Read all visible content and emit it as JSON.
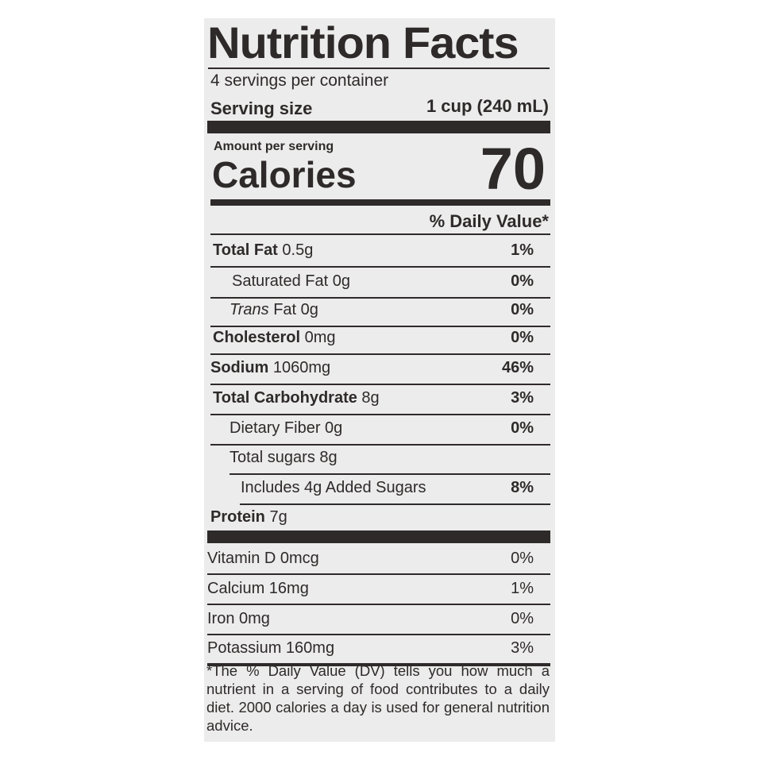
{
  "title": "Nutrition Facts",
  "servings": "4 servings per container",
  "serving_size_label": "Serving size",
  "serving_size_value": "1 cup (240 mL)",
  "amount_per_serving": "Amount per serving",
  "calories_label": "Calories",
  "calories_value": "70",
  "dv_header": "% Daily Value*",
  "nutrients": [
    {
      "bold": "Total Fat",
      "rest": " 0.5g",
      "dv": "1%"
    },
    {
      "bold": "",
      "rest": "Saturated Fat 0g",
      "dv": "0%"
    },
    {
      "italic": "Trans",
      "rest": " Fat 0g",
      "dv": "0%"
    },
    {
      "bold": "Cholesterol",
      "rest": " 0mg",
      "dv": "0%"
    },
    {
      "bold": "Sodium",
      "rest": " 1060mg",
      "dv": "46%"
    },
    {
      "bold": "Total Carbohydrate",
      "rest": " 8g",
      "dv": "3%"
    },
    {
      "bold": "",
      "rest": "Dietary Fiber 0g",
      "dv": "0%"
    },
    {
      "bold": "",
      "rest": "Total sugars 8g",
      "dv": ""
    },
    {
      "bold": "",
      "rest": "Includes 4g Added Sugars",
      "dv": "8%"
    },
    {
      "bold": "Protein",
      "rest": " 7g",
      "dv": ""
    }
  ],
  "vitamins": [
    {
      "name": "Vitamin D 0mcg",
      "dv": "0%"
    },
    {
      "name": "Calcium 16mg",
      "dv": "1%"
    },
    {
      "name": "Iron 0mg",
      "dv": "0%"
    },
    {
      "name": "Potassium 160mg",
      "dv": "3%"
    }
  ],
  "footnote": "*The % Daily Value (DV) tells you how much a nutrient in a serving of food contributes to a daily diet. 2000 calories a day is used for general nutrition advice."
}
